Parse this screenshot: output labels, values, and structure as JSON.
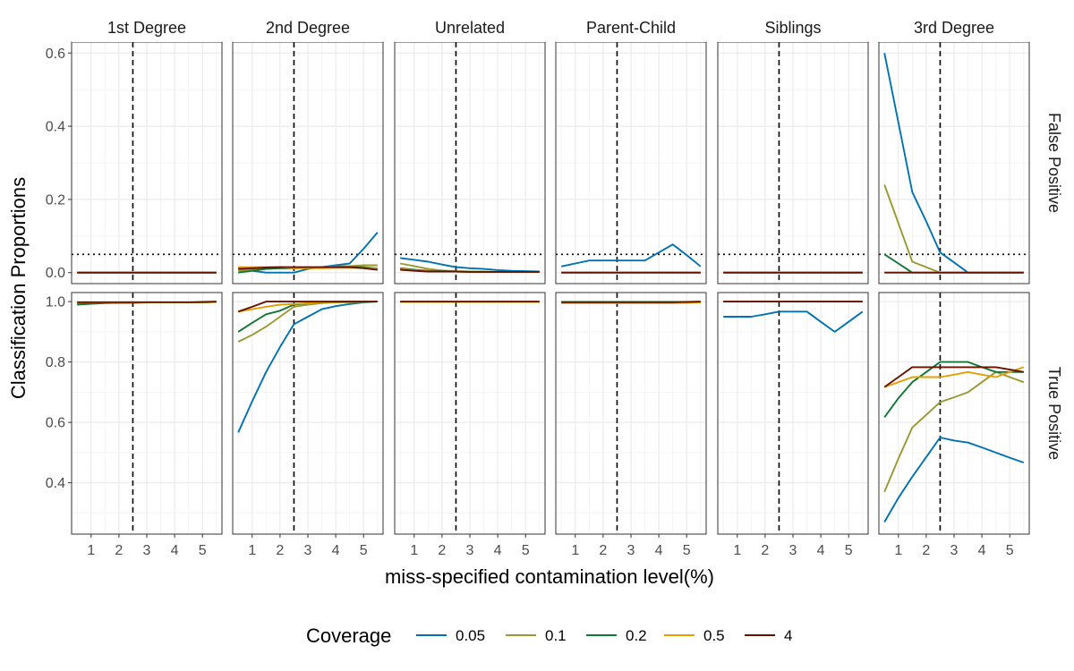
{
  "chart_data": {
    "type": "line",
    "xlabel": "miss-specified contamination level(%)",
    "ylabel": "Classification Proportions",
    "x": [
      0.5,
      1,
      1.5,
      2,
      2.5,
      3,
      3.5,
      4,
      4.5,
      5,
      5.5
    ],
    "x_ticks": [
      1,
      2,
      3,
      4,
      5
    ],
    "xlim": [
      0.3,
      5.7
    ],
    "panels": [
      "1st Degree",
      "2nd Degree",
      "Unrelated",
      "Parent-Child",
      "Siblings",
      "3rd Degree"
    ],
    "rows": [
      {
        "label": "False Positive",
        "ylim": [
          -0.03,
          0.63
        ],
        "y_ticks": [
          "0.0",
          "0.2",
          "0.4",
          "0.6"
        ],
        "reference_y": 0.05
      },
      {
        "label": "True Positive",
        "ylim": [
          0.23,
          1.03
        ],
        "y_ticks": [
          "0.4",
          "0.6",
          "0.8",
          "1.0"
        ],
        "reference_y": null
      }
    ],
    "vline_x": 2.5,
    "grid": true,
    "legend": {
      "title": "Coverage",
      "position": "bottom",
      "entries": [
        {
          "label": "0.05",
          "color": "#0072B2"
        },
        {
          "label": "0.1",
          "color": "#999933"
        },
        {
          "label": "0.2",
          "color": "#117733"
        },
        {
          "label": "0.5",
          "color": "#E69F00"
        },
        {
          "label": "4",
          "color": "#661100"
        }
      ]
    },
    "series": {
      "False Positive": {
        "1st Degree": {
          "0.05": [
            0,
            0,
            0,
            0,
            0,
            0,
            0,
            0,
            0,
            0,
            0
          ],
          "0.1": [
            0,
            0,
            0,
            0,
            0,
            0,
            0,
            0,
            0,
            0,
            0
          ],
          "0.2": [
            0,
            0,
            0,
            0,
            0,
            0,
            0,
            0,
            0,
            0,
            0
          ],
          "0.5": [
            0,
            0,
            0,
            0,
            0,
            0,
            0,
            0,
            0,
            0,
            0
          ],
          "4": [
            0,
            0,
            0,
            0,
            0,
            0,
            0,
            0,
            0,
            0,
            0
          ]
        },
        "2nd Degree": {
          "0.05": [
            0.01,
            0.005,
            0,
            0,
            0,
            0.01,
            0.015,
            0.02,
            0.025,
            0.065,
            0.11
          ],
          "0.1": [
            0.005,
            0.008,
            0.01,
            0.012,
            0.012,
            0.013,
            0.015,
            0.017,
            0.018,
            0.02,
            0.02
          ],
          "0.2": [
            0,
            0.005,
            0.01,
            0.012,
            0.012,
            0.013,
            0.014,
            0.015,
            0.015,
            0.015,
            0.012
          ],
          "0.5": [
            0.015,
            0.015,
            0.015,
            0.015,
            0.012,
            0.012,
            0.012,
            0.013,
            0.013,
            0.013,
            0.012
          ],
          "4": [
            0.01,
            0.012,
            0.014,
            0.015,
            0.015,
            0.015,
            0.015,
            0.015,
            0.015,
            0.012,
            0.008
          ]
        },
        "Unrelated": {
          "0.05": [
            0.04,
            0.035,
            0.03,
            0.022,
            0.015,
            0.012,
            0.01,
            0.007,
            0.005,
            0.004,
            0.003
          ],
          "0.1": [
            0.025,
            0.018,
            0.01,
            0.006,
            0.004,
            0.003,
            0.003,
            0.002,
            0.002,
            0.002,
            0.002
          ],
          "0.2": [
            0.012,
            0.008,
            0.005,
            0.004,
            0.003,
            0.002,
            0.002,
            0.002,
            0.002,
            0.002,
            0.002
          ],
          "0.5": [
            0.01,
            0.006,
            0.004,
            0.003,
            0.003,
            0.002,
            0.002,
            0.002,
            0.002,
            0.002,
            0.002
          ],
          "4": [
            0.008,
            0.005,
            0.003,
            0.003,
            0.003,
            0.002,
            0.002,
            0.002,
            0.002,
            0.002,
            0.002
          ]
        },
        "Parent-Child": {
          "0.05": [
            0.017,
            0.025,
            0.033,
            0.033,
            0.033,
            0.033,
            0.033,
            0.055,
            0.077,
            0.048,
            0.017
          ],
          "0.1": [
            0,
            0,
            0,
            0,
            0,
            0,
            0,
            0,
            0,
            0,
            0
          ],
          "0.2": [
            0,
            0,
            0,
            0,
            0,
            0,
            0,
            0,
            0,
            0,
            0
          ],
          "0.5": [
            0,
            0,
            0,
            0,
            0,
            0,
            0,
            0,
            0,
            0,
            0
          ],
          "4": [
            0,
            0,
            0,
            0,
            0,
            0,
            0,
            0,
            0,
            0,
            0
          ]
        },
        "Siblings": {
          "0.05": [
            0,
            0,
            0,
            0,
            0,
            0,
            0,
            0,
            0,
            0,
            0
          ],
          "0.1": [
            0,
            0,
            0,
            0,
            0,
            0,
            0,
            0,
            0,
            0,
            0
          ],
          "0.2": [
            0,
            0,
            0,
            0,
            0,
            0,
            0,
            0,
            0,
            0,
            0
          ],
          "0.5": [
            0,
            0,
            0,
            0,
            0,
            0,
            0,
            0,
            0,
            0,
            0
          ],
          "4": [
            0,
            0,
            0,
            0,
            0,
            0,
            0,
            0,
            0,
            0,
            0
          ]
        },
        "3rd Degree": {
          "0.05": [
            0.6,
            0.41,
            0.22,
            0.14,
            0.055,
            0.028,
            0,
            0,
            0,
            0,
            0
          ],
          "0.1": [
            0.24,
            0.135,
            0.03,
            0.015,
            0,
            0,
            0,
            0,
            0,
            0,
            0
          ],
          "0.2": [
            0.05,
            0.025,
            0,
            0,
            0,
            0,
            0,
            0,
            0,
            0,
            0
          ],
          "0.5": [
            0,
            0,
            0,
            0,
            0,
            0,
            0,
            0,
            0,
            0,
            0
          ],
          "4": [
            0,
            0,
            0,
            0,
            0,
            0,
            0,
            0,
            0,
            0,
            0
          ]
        }
      },
      "True Positive": {
        "1st Degree": {
          "0.05": [
            0.995,
            0.996,
            0.997,
            0.997,
            0.997,
            0.997,
            0.997,
            0.997,
            0.997,
            0.998,
            0.999
          ],
          "0.1": [
            0.995,
            0.996,
            0.997,
            0.997,
            0.997,
            0.997,
            0.997,
            0.997,
            0.997,
            0.998,
            0.999
          ],
          "0.2": [
            0.99,
            0.993,
            0.995,
            0.996,
            0.996,
            0.997,
            0.997,
            0.997,
            0.997,
            0.998,
            0.999
          ],
          "0.5": [
            0.997,
            0.997,
            0.997,
            0.997,
            0.997,
            0.997,
            0.997,
            0.997,
            0.997,
            0.998,
            0.999
          ],
          "4": [
            0.998,
            0.998,
            0.998,
            0.998,
            0.998,
            0.998,
            0.998,
            0.998,
            0.998,
            0.999,
            1.0
          ]
        },
        "2nd Degree": {
          "0.05": [
            0.567,
            0.67,
            0.767,
            0.85,
            0.925,
            0.95,
            0.975,
            0.985,
            0.992,
            0.997,
            1.0
          ],
          "0.1": [
            0.867,
            0.89,
            0.917,
            0.95,
            0.983,
            0.99,
            0.995,
            0.997,
            0.998,
            0.999,
            1.0
          ],
          "0.2": [
            0.9,
            0.93,
            0.958,
            0.97,
            0.99,
            0.995,
            0.998,
            0.999,
            1.0,
            1.0,
            1.0
          ],
          "0.5": [
            0.967,
            0.975,
            0.983,
            0.99,
            0.992,
            0.995,
            0.998,
            0.999,
            1.0,
            1.0,
            1.0
          ],
          "4": [
            0.967,
            0.983,
            1.0,
            1.0,
            1.0,
            1.0,
            1.0,
            1.0,
            1.0,
            1.0,
            1.0
          ]
        },
        "Unrelated": {
          "0.05": [
            0.999,
            0.999,
            0.999,
            0.999,
            0.999,
            0.999,
            0.999,
            0.999,
            0.999,
            0.999,
            0.999
          ],
          "0.1": [
            0.999,
            0.999,
            0.999,
            0.999,
            0.999,
            0.999,
            0.999,
            0.999,
            0.999,
            0.999,
            0.999
          ],
          "0.2": [
            0.999,
            0.999,
            0.999,
            0.999,
            0.999,
            0.999,
            0.999,
            0.999,
            0.999,
            0.999,
            0.999
          ],
          "0.5": [
            0.999,
            0.999,
            0.999,
            0.999,
            0.999,
            0.999,
            0.999,
            0.999,
            0.999,
            0.999,
            0.999
          ],
          "4": [
            1.0,
            1.0,
            1.0,
            1.0,
            1.0,
            1.0,
            1.0,
            1.0,
            1.0,
            1.0,
            1.0
          ]
        },
        "Parent-Child": {
          "0.05": [
            0.997,
            0.997,
            0.997,
            0.997,
            0.997,
            0.997,
            0.997,
            0.997,
            0.997,
            0.998,
            0.999
          ],
          "0.1": [
            0.997,
            0.997,
            0.997,
            0.997,
            0.997,
            0.997,
            0.997,
            0.997,
            0.997,
            0.998,
            0.999
          ],
          "0.2": [
            0.999,
            0.999,
            0.999,
            0.999,
            0.999,
            0.999,
            0.999,
            0.999,
            0.999,
            0.999,
            0.999
          ],
          "0.5": [
            0.995,
            0.995,
            0.995,
            0.995,
            0.995,
            0.995,
            0.995,
            0.995,
            0.995,
            0.996,
            0.997
          ],
          "4": [
            0.998,
            0.998,
            0.998,
            0.998,
            0.998,
            0.998,
            0.998,
            0.998,
            0.998,
            0.999,
            1.0
          ]
        },
        "Siblings": {
          "0.05": [
            0.95,
            0.95,
            0.95,
            0.958,
            0.967,
            0.967,
            0.967,
            0.933,
            0.9,
            0.933,
            0.967
          ],
          "0.1": [
            1.0,
            1.0,
            1.0,
            1.0,
            1.0,
            1.0,
            1.0,
            1.0,
            1.0,
            1.0,
            1.0
          ],
          "0.2": [
            1.0,
            1.0,
            1.0,
            1.0,
            1.0,
            1.0,
            1.0,
            1.0,
            1.0,
            1.0,
            1.0
          ],
          "0.5": [
            1.0,
            1.0,
            1.0,
            1.0,
            1.0,
            1.0,
            1.0,
            1.0,
            1.0,
            1.0,
            1.0
          ],
          "4": [
            1.0,
            1.0,
            1.0,
            1.0,
            1.0,
            1.0,
            1.0,
            1.0,
            1.0,
            1.0,
            1.0
          ]
        },
        "3rd Degree": {
          "0.05": [
            0.27,
            0.35,
            0.42,
            0.485,
            0.55,
            0.54,
            0.533,
            0.517,
            0.5,
            0.483,
            0.467
          ],
          "0.1": [
            0.37,
            0.48,
            0.583,
            0.625,
            0.667,
            0.683,
            0.7,
            0.733,
            0.767,
            0.75,
            0.733
          ],
          "0.2": [
            0.617,
            0.68,
            0.733,
            0.767,
            0.8,
            0.8,
            0.8,
            0.783,
            0.767,
            0.767,
            0.767
          ],
          "0.5": [
            0.717,
            0.733,
            0.75,
            0.75,
            0.75,
            0.758,
            0.767,
            0.758,
            0.75,
            0.767,
            0.783
          ],
          "4": [
            0.717,
            0.75,
            0.783,
            0.783,
            0.783,
            0.783,
            0.783,
            0.783,
            0.783,
            0.775,
            0.767
          ]
        }
      }
    }
  }
}
